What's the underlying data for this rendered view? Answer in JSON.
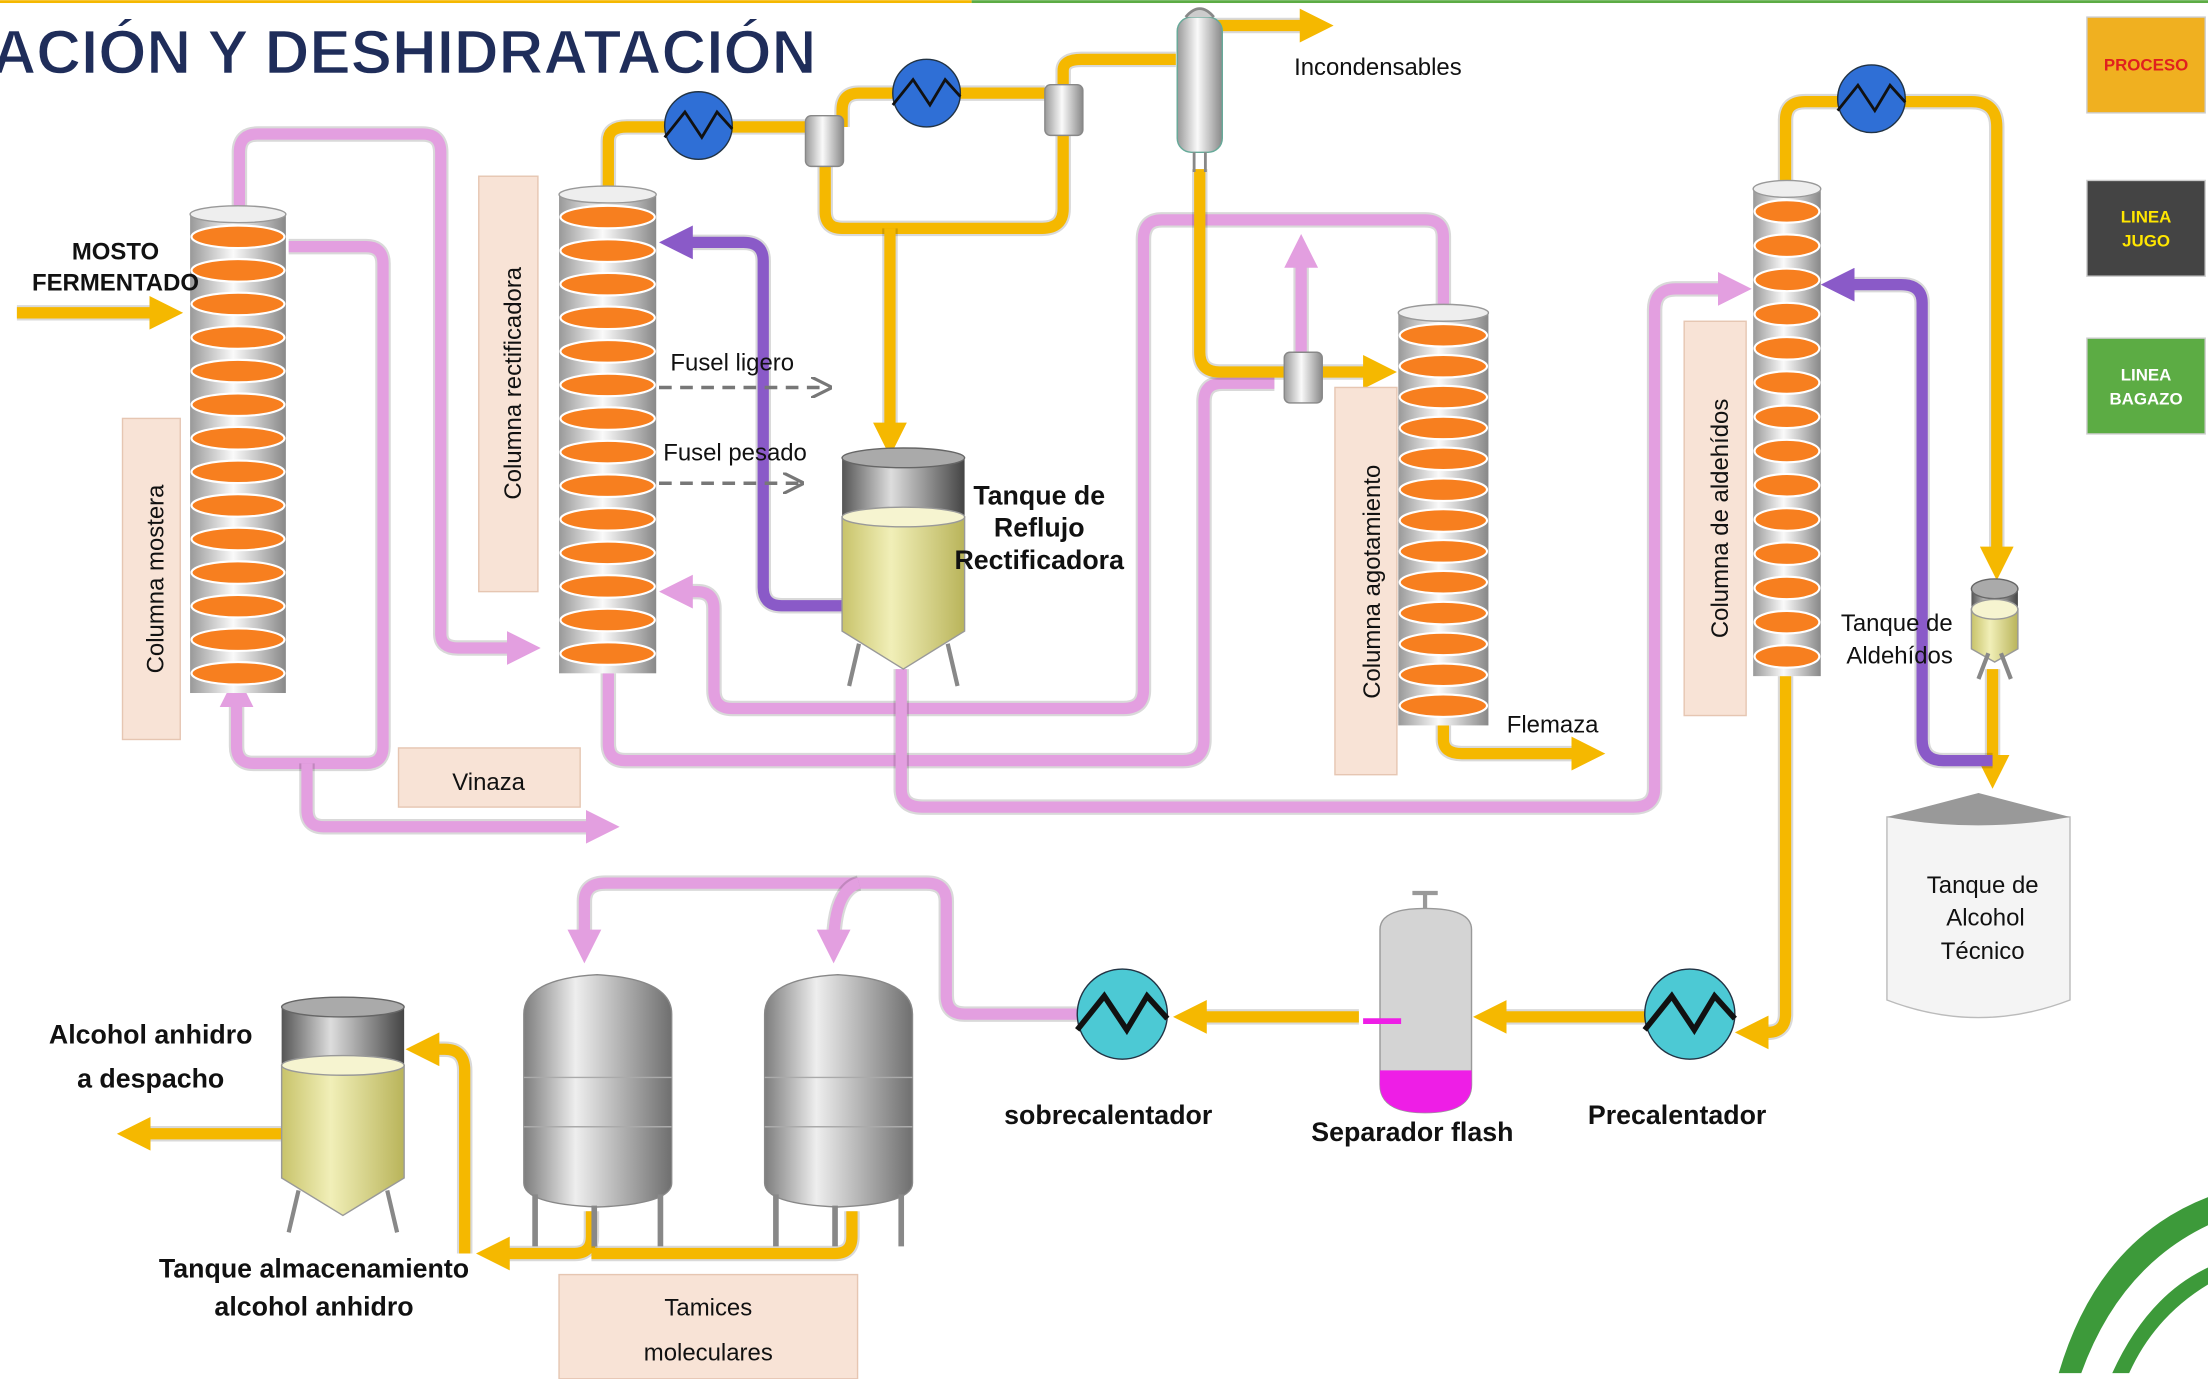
{
  "header": {
    "title": "ACIÓN Y DESHIDRATACIÓN"
  },
  "nav": [
    {
      "label": [
        "PROCESO"
      ]
    },
    {
      "label": [
        "LINEA",
        "JUGO"
      ]
    },
    {
      "label": [
        "LINEA",
        "BAGAZO"
      ]
    }
  ],
  "labels": {
    "mosto": [
      "MOSTO",
      "FERMENTADO"
    ],
    "columna_mostera": "Columna mostera",
    "vinaza": "Vinaza",
    "columna_rectificadora": "Columna rectificadora",
    "fusel_ligero": "Fusel ligero",
    "fusel_pesado": "Fusel pesado",
    "tanque_reflujo": [
      "Tanque de",
      "Reflujo",
      "Rectificadora"
    ],
    "incondensables": "Incondensables",
    "columna_agotamiento": "Columna agotamiento",
    "flemaza": "Flemaza",
    "columna_aldehidos": "Columna de aldehídos",
    "tanque_aldehidos": [
      "Tanque de",
      "Aldehídos"
    ],
    "tanque_alcohol_tecnico": [
      "Tanque de",
      "Alcohol",
      "Técnico"
    ],
    "precalentador": "Precalentador",
    "separador_flash": "Separador flash",
    "sobrecalentador": "sobrecalentador",
    "tamices": [
      "Tamices",
      "moleculares"
    ],
    "tanque_anhidro": [
      "Tanque almacenamiento",
      "alcohol anhidro"
    ],
    "alcohol_despacho": [
      "Alcohol anhidro",
      "a despacho"
    ]
  }
}
